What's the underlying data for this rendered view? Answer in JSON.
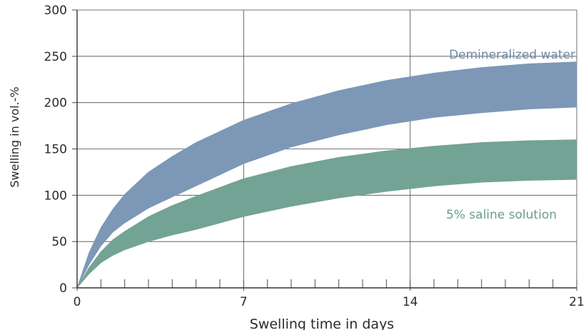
{
  "chart_data": {
    "type": "area",
    "title": "",
    "xlabel": "Swelling time in days",
    "ylabel": "Swelling in vol.-%",
    "xlim": [
      0,
      21
    ],
    "ylim": [
      0,
      300
    ],
    "x_ticks": [
      0,
      7,
      14,
      21
    ],
    "x_tick_labels": [
      "0",
      "7",
      "14",
      "21"
    ],
    "x_minor_ticks": [
      1,
      2,
      3,
      4,
      5,
      6,
      8,
      9,
      10,
      11,
      12,
      13,
      15,
      16,
      17,
      18,
      19,
      20
    ],
    "y_ticks": [
      0,
      50,
      100,
      150,
      200,
      250,
      300
    ],
    "y_tick_labels": [
      "0",
      "50",
      "100",
      "150",
      "200",
      "250",
      "300"
    ],
    "grid": true,
    "legend": "inline labels",
    "series": [
      {
        "name": "Demineralized water",
        "color": "#7c98b6",
        "label_color": "#6f8aa8",
        "x": [
          0,
          0.5,
          1,
          1.5,
          2,
          3,
          4,
          5,
          7,
          9,
          11,
          13,
          15,
          17,
          19,
          21
        ],
        "upper": [
          0,
          38,
          65,
          85,
          101,
          125,
          142,
          157,
          181,
          199,
          213,
          224,
          232,
          238,
          242,
          244
        ],
        "lower": [
          0,
          25,
          45,
          60,
          70,
          86,
          98,
          110,
          134,
          152,
          165,
          176,
          184,
          189,
          193,
          195
        ]
      },
      {
        "name": "5% saline solution",
        "color": "#73a394",
        "label_color": "#6a9c8d",
        "x": [
          0,
          0.5,
          1,
          1.5,
          2,
          3,
          4,
          5,
          7,
          9,
          11,
          13,
          15,
          17,
          19,
          21
        ],
        "upper": [
          0,
          22,
          39,
          52,
          61,
          77,
          89,
          99,
          118,
          131,
          141,
          148,
          153,
          157,
          159,
          160
        ],
        "lower": [
          0,
          15,
          27,
          35,
          41,
          50,
          57,
          63,
          77,
          88,
          97,
          104,
          110,
          114,
          116,
          117
        ]
      }
    ]
  }
}
